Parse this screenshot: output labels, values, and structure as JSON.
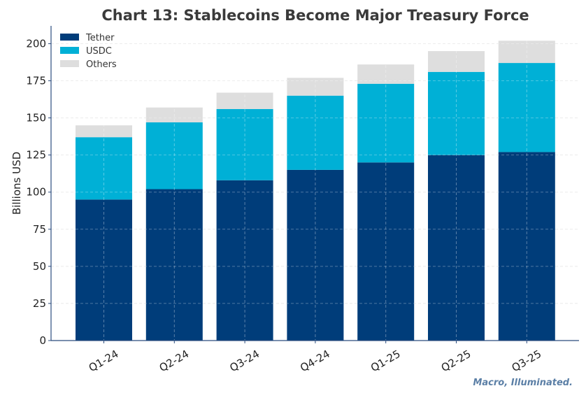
{
  "chart_data": {
    "type": "bar",
    "stacked": true,
    "title": "Chart 13: Stablecoins Become Major Treasury Force",
    "xlabel": "",
    "ylabel": "Billions USD",
    "categories": [
      "Q1-24",
      "Q2-24",
      "Q3-24",
      "Q4-24",
      "Q1-25",
      "Q2-25",
      "Q3-25"
    ],
    "series": [
      {
        "name": "Tether",
        "color": "#003d7a",
        "values": [
          95,
          102,
          108,
          115,
          120,
          125,
          127
        ]
      },
      {
        "name": "USDC",
        "color": "#00b0d6",
        "values": [
          42,
          45,
          48,
          50,
          53,
          56,
          60
        ]
      },
      {
        "name": "Others",
        "color": "#dedede",
        "values": [
          8,
          10,
          11,
          12,
          13,
          14,
          15
        ]
      }
    ],
    "ylim": [
      0,
      212
    ],
    "yticks": [
      0,
      25,
      50,
      75,
      100,
      125,
      150,
      175,
      200
    ],
    "grid": true,
    "legend_position": "top-left"
  },
  "watermark": "Macro, Illuminated."
}
